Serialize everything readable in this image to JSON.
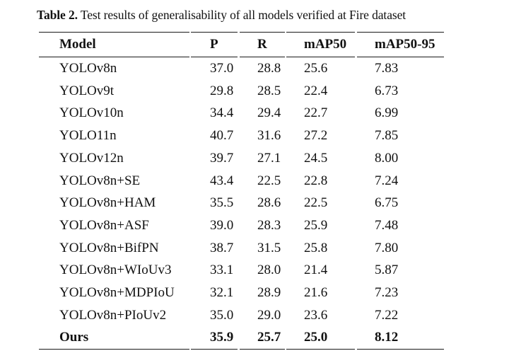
{
  "caption": {
    "label": "Table 2.",
    "text": "Test results of generalisability of all models verified at Fire dataset"
  },
  "table": {
    "headers": [
      "Model",
      "P",
      "R",
      "mAP50",
      "mAP50-95"
    ],
    "rows": [
      {
        "model": "YOLOv8n",
        "p": "37.0",
        "r": "28.8",
        "map50": "25.6",
        "map5095": "7.83",
        "bold": false
      },
      {
        "model": "YOLOv9t",
        "p": "29.8",
        "r": "28.5",
        "map50": "22.4",
        "map5095": "6.73",
        "bold": false
      },
      {
        "model": "YOLOv10n",
        "p": "34.4",
        "r": "29.4",
        "map50": "22.7",
        "map5095": "6.99",
        "bold": false
      },
      {
        "model": "YOLO11n",
        "p": "40.7",
        "r": "31.6",
        "map50": "27.2",
        "map5095": "7.85",
        "bold": false
      },
      {
        "model": "YOLOv12n",
        "p": "39.7",
        "r": "27.1",
        "map50": "24.5",
        "map5095": "8.00",
        "bold": false
      },
      {
        "model": "YOLOv8n+SE",
        "p": "43.4",
        "r": "22.5",
        "map50": "22.8",
        "map5095": "7.24",
        "bold": false
      },
      {
        "model": "YOLOv8n+HAM",
        "p": "35.5",
        "r": "28.6",
        "map50": "22.5",
        "map5095": "6.75",
        "bold": false
      },
      {
        "model": "YOLOv8n+ASF",
        "p": "39.0",
        "r": "28.3",
        "map50": "25.9",
        "map5095": "7.48",
        "bold": false
      },
      {
        "model": "YOLOv8n+BifPN",
        "p": "38.7",
        "r": "31.5",
        "map50": "25.8",
        "map5095": "7.80",
        "bold": false
      },
      {
        "model": "YOLOv8n+WIoUv3",
        "p": "33.1",
        "r": "28.0",
        "map50": "21.4",
        "map5095": "5.87",
        "bold": false
      },
      {
        "model": "YOLOv8n+MDPIoU",
        "p": "32.1",
        "r": "28.9",
        "map50": "21.6",
        "map5095": "7.23",
        "bold": false
      },
      {
        "model": "YOLOv8n+PIoUv2",
        "p": "35.0",
        "r": "29.0",
        "map50": "23.6",
        "map5095": "7.22",
        "bold": false
      },
      {
        "model": "Ours",
        "p": "35.9",
        "r": "25.7",
        "map50": "25.0",
        "map5095": "8.12",
        "bold": true
      }
    ]
  }
}
